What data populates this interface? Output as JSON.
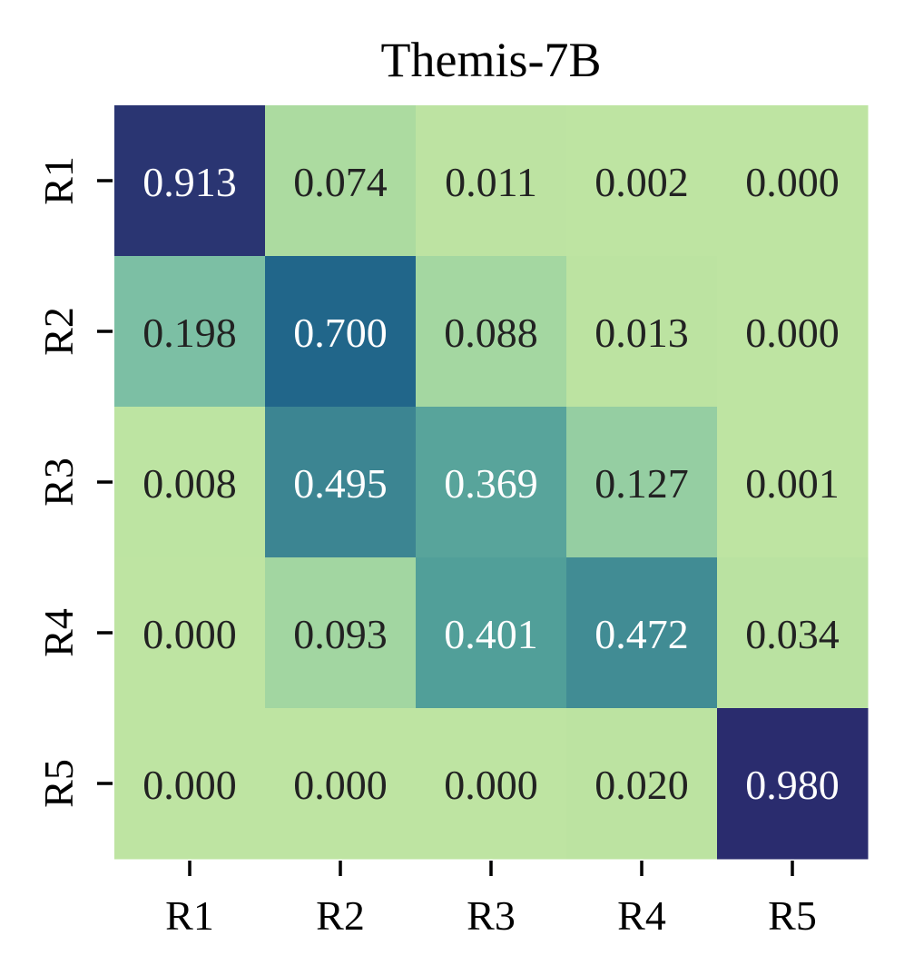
{
  "chart_data": {
    "type": "heatmap",
    "title": "Themis-7B",
    "xlabel": "",
    "ylabel": "",
    "x_categories": [
      "R1",
      "R2",
      "R3",
      "R4",
      "R5"
    ],
    "y_categories": [
      "R1",
      "R2",
      "R3",
      "R4",
      "R5"
    ],
    "values": [
      [
        0.913,
        0.074,
        0.011,
        0.002,
        0.0
      ],
      [
        0.198,
        0.7,
        0.088,
        0.013,
        0.0
      ],
      [
        0.008,
        0.495,
        0.369,
        0.127,
        0.001
      ],
      [
        0.0,
        0.093,
        0.401,
        0.472,
        0.034
      ],
      [
        0.0,
        0.0,
        0.0,
        0.02,
        0.98
      ]
    ],
    "colorscale": [
      [
        0.0,
        "#bee4a2"
      ],
      [
        0.05,
        "#b8e1a0"
      ],
      [
        0.1,
        "#9ed4a1"
      ],
      [
        0.2,
        "#7bbfa4"
      ],
      [
        0.4,
        "#519f99"
      ],
      [
        0.5,
        "#3b8492"
      ],
      [
        0.7,
        "#21668a"
      ],
      [
        0.91,
        "#2a3572"
      ],
      [
        1.0,
        "#2a2a6d"
      ]
    ],
    "value_range": [
      0,
      1
    ],
    "label_color_dark": "#222222",
    "label_color_light": "#ffffff",
    "light_label_threshold": 0.3
  }
}
